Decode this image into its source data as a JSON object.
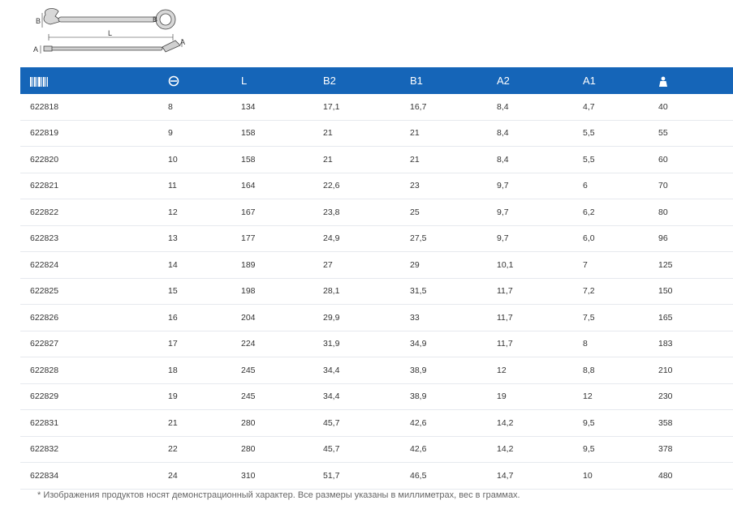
{
  "diagram": {
    "labels": {
      "b2_left": "B",
      "b2_right": "B",
      "length": "L",
      "a_left": "A",
      "a_right": "A"
    }
  },
  "table": {
    "headers": [
      {
        "icon": "barcode-icon"
      },
      {
        "icon": "wrench-size-icon"
      },
      {
        "label": "L"
      },
      {
        "label": "B2"
      },
      {
        "label": "B1"
      },
      {
        "label": "A2"
      },
      {
        "label": "A1"
      },
      {
        "icon": "weight-icon"
      }
    ],
    "rows": [
      [
        "622818",
        "8",
        "134",
        "17,1",
        "16,7",
        "8,4",
        "4,7",
        "40"
      ],
      [
        "622819",
        "9",
        "158",
        "21",
        "21",
        "8,4",
        "5,5",
        "55"
      ],
      [
        "622820",
        "10",
        "158",
        "21",
        "21",
        "8,4",
        "5,5",
        "60"
      ],
      [
        "622821",
        "11",
        "164",
        "22,6",
        "23",
        "9,7",
        "6",
        "70"
      ],
      [
        "622822",
        "12",
        "167",
        "23,8",
        "25",
        "9,7",
        "6,2",
        "80"
      ],
      [
        "622823",
        "13",
        "177",
        "24,9",
        "27,5",
        "9,7",
        "6,0",
        "96"
      ],
      [
        "622824",
        "14",
        "189",
        "27",
        "29",
        "10,1",
        "7",
        "125"
      ],
      [
        "622825",
        "15",
        "198",
        "28,1",
        "31,5",
        "11,7",
        "7,2",
        "150"
      ],
      [
        "622826",
        "16",
        "204",
        "29,9",
        "33",
        "11,7",
        "7,5",
        "165"
      ],
      [
        "622827",
        "17",
        "224",
        "31,9",
        "34,9",
        "11,7",
        "8",
        "183"
      ],
      [
        "622828",
        "18",
        "245",
        "34,4",
        "38,9",
        "12",
        "8,8",
        "210"
      ],
      [
        "622829",
        "19",
        "245",
        "34,4",
        "38,9",
        "19",
        "12",
        "230"
      ],
      [
        "622831",
        "21",
        "280",
        "45,7",
        "42,6",
        "14,2",
        "9,5",
        "358"
      ],
      [
        "622832",
        "22",
        "280",
        "45,7",
        "42,6",
        "14,2",
        "9,5",
        "378"
      ],
      [
        "622834",
        "24",
        "310",
        "51,7",
        "46,5",
        "14,7",
        "10",
        "480"
      ]
    ]
  },
  "footnote": "* Изображения продуктов носят демонстрационный характер. Все размеры указаны в миллиметрах, вес в граммах.",
  "colors": {
    "header_bg": "#1565b8",
    "header_text": "#ffffff",
    "row_text": "#333333",
    "divider": "#e6e9ee"
  }
}
